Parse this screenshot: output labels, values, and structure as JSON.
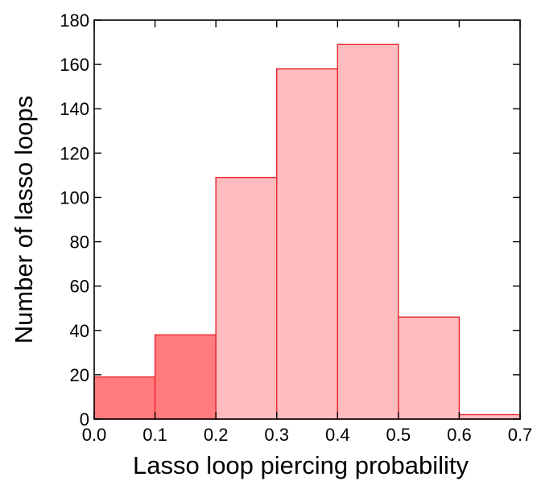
{
  "chart_data": {
    "type": "bar",
    "title": "",
    "xlabel": "Lasso loop piercing probability",
    "ylabel": "Number of lasso loops",
    "bins": [
      {
        "x0": 0.0,
        "x1": 0.1,
        "value": 19,
        "shade": "dark"
      },
      {
        "x0": 0.1,
        "x1": 0.2,
        "value": 38,
        "shade": "dark"
      },
      {
        "x0": 0.2,
        "x1": 0.3,
        "value": 109,
        "shade": "light"
      },
      {
        "x0": 0.3,
        "x1": 0.4,
        "value": 158,
        "shade": "light"
      },
      {
        "x0": 0.4,
        "x1": 0.5,
        "value": 169,
        "shade": "light"
      },
      {
        "x0": 0.5,
        "x1": 0.6,
        "value": 46,
        "shade": "light"
      },
      {
        "x0": 0.6,
        "x1": 0.7,
        "value": 2,
        "shade": "light"
      }
    ],
    "xlim": [
      0.0,
      0.7
    ],
    "ylim": [
      0,
      180
    ],
    "xticks": [
      "0.0",
      "0.1",
      "0.2",
      "0.3",
      "0.4",
      "0.5",
      "0.6",
      "0.7"
    ],
    "xtick_values": [
      0.0,
      0.1,
      0.2,
      0.3,
      0.4,
      0.5,
      0.6,
      0.7
    ],
    "yticks": [
      "0",
      "20",
      "40",
      "60",
      "80",
      "100",
      "120",
      "140",
      "160",
      "180"
    ],
    "ytick_values": [
      0,
      20,
      40,
      60,
      80,
      100,
      120,
      140,
      160,
      180
    ],
    "grid": false,
    "colors": {
      "dark_fill": "#ff7b7e",
      "light_fill": "#ffbcbe",
      "bar_edge": "#e8282e",
      "axis": "#000000"
    }
  }
}
